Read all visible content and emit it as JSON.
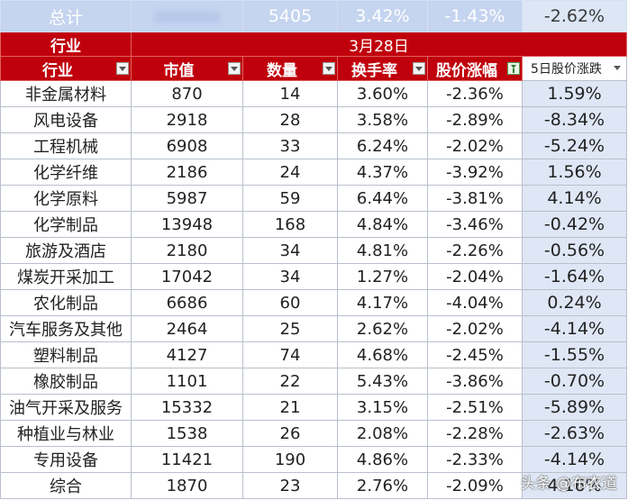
{
  "total": {
    "label": "总计",
    "market_cap": "",
    "count": "5405",
    "turnover": "3.42%",
    "price_change": "-1.43%",
    "change_5d": "-2.62%"
  },
  "group_header": {
    "label": "行业",
    "date": "3月28日"
  },
  "columns": {
    "industry": "行业",
    "market_cap": "市值",
    "count": "数量",
    "turnover": "换手率",
    "price_change": "股价涨幅",
    "change_5d": "5日股价涨跌"
  },
  "rows": [
    {
      "industry": "非金属材料",
      "market_cap": "870",
      "count": "14",
      "turnover": "3.60%",
      "price_change": "-2.36%",
      "change_5d": "1.59%"
    },
    {
      "industry": "风电设备",
      "market_cap": "2918",
      "count": "28",
      "turnover": "3.58%",
      "price_change": "-2.89%",
      "change_5d": "-8.34%"
    },
    {
      "industry": "工程机械",
      "market_cap": "6908",
      "count": "33",
      "turnover": "6.24%",
      "price_change": "-2.02%",
      "change_5d": "-5.24%"
    },
    {
      "industry": "化学纤维",
      "market_cap": "2186",
      "count": "24",
      "turnover": "4.37%",
      "price_change": "-3.92%",
      "change_5d": "1.56%"
    },
    {
      "industry": "化学原料",
      "market_cap": "5987",
      "count": "59",
      "turnover": "6.44%",
      "price_change": "-3.81%",
      "change_5d": "4.14%"
    },
    {
      "industry": "化学制品",
      "market_cap": "13948",
      "count": "168",
      "turnover": "4.84%",
      "price_change": "-3.46%",
      "change_5d": "-0.42%"
    },
    {
      "industry": "旅游及酒店",
      "market_cap": "2180",
      "count": "34",
      "turnover": "4.81%",
      "price_change": "-2.26%",
      "change_5d": "-0.56%"
    },
    {
      "industry": "煤炭开采加工",
      "market_cap": "17042",
      "count": "34",
      "turnover": "1.27%",
      "price_change": "-2.04%",
      "change_5d": "-1.64%"
    },
    {
      "industry": "农化制品",
      "market_cap": "6686",
      "count": "60",
      "turnover": "4.17%",
      "price_change": "-4.04%",
      "change_5d": "0.24%"
    },
    {
      "industry": "汽车服务及其他",
      "market_cap": "2464",
      "count": "25",
      "turnover": "2.62%",
      "price_change": "-2.02%",
      "change_5d": "-4.14%"
    },
    {
      "industry": "塑料制品",
      "market_cap": "4127",
      "count": "74",
      "turnover": "4.68%",
      "price_change": "-2.45%",
      "change_5d": "-1.55%"
    },
    {
      "industry": "橡胶制品",
      "market_cap": "1101",
      "count": "22",
      "turnover": "5.43%",
      "price_change": "-3.86%",
      "change_5d": "-0.70%"
    },
    {
      "industry": "油气开采及服务",
      "market_cap": "15332",
      "count": "21",
      "turnover": "3.15%",
      "price_change": "-2.51%",
      "change_5d": "-5.89%"
    },
    {
      "industry": "种植业与林业",
      "market_cap": "1538",
      "count": "26",
      "turnover": "2.08%",
      "price_change": "-2.28%",
      "change_5d": "-2.63%"
    },
    {
      "industry": "专用设备",
      "market_cap": "11421",
      "count": "190",
      "turnover": "4.86%",
      "price_change": "-2.33%",
      "change_5d": "-4.14%"
    },
    {
      "industry": "综合",
      "market_cap": "1870",
      "count": "23",
      "turnover": "2.76%",
      "price_change": "-2.09%",
      "change_5d": "4.16%"
    }
  ],
  "watermark": "头条 @布衣道",
  "colors": {
    "header_red": "#c0000c",
    "total_blue": "#c5d4ef",
    "highlight_col": "#dfe7f6"
  },
  "icons": {
    "filter": "dropdown-filter-icon",
    "filter_active": "filter-active-icon"
  }
}
